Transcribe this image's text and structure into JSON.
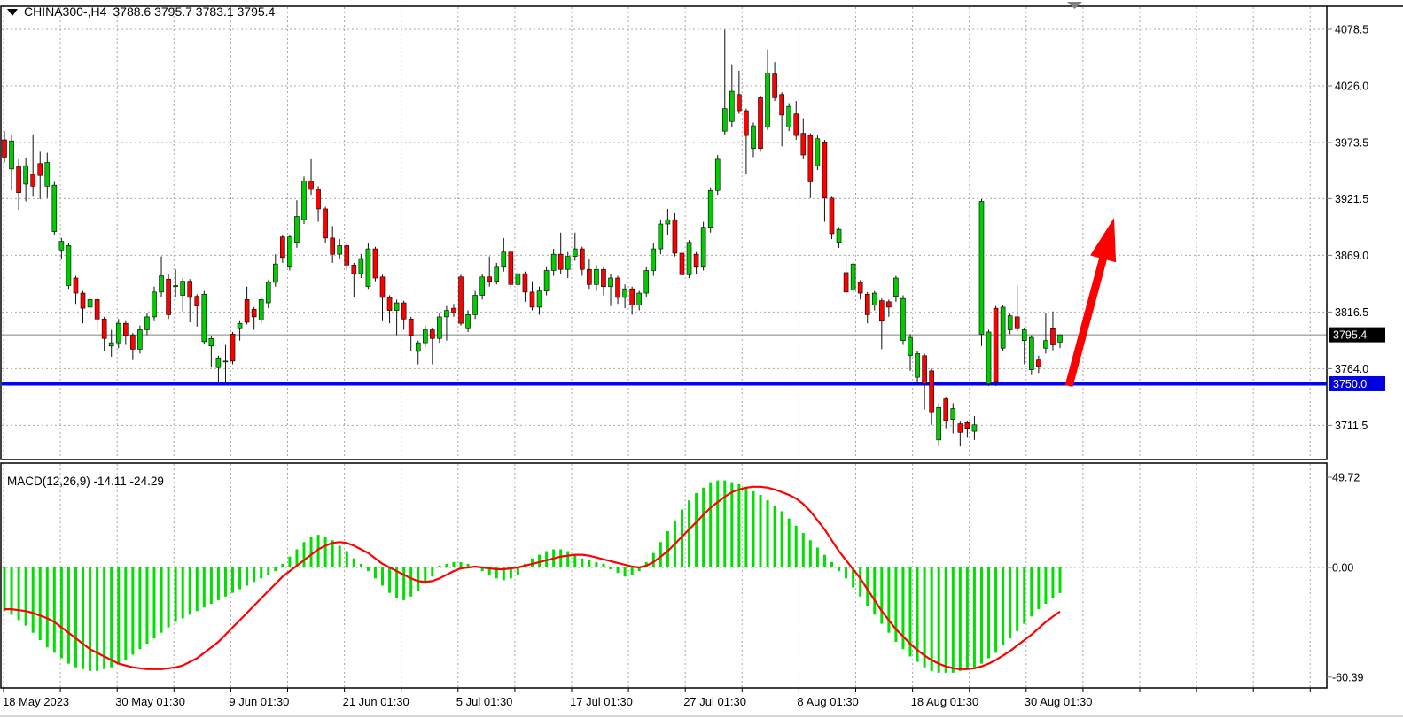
{
  "header": {
    "symbol": "CHINA300-,H4",
    "ohlc": "3788.6 3795.7 3783.1 3795.4"
  },
  "indicator": {
    "label": "MACD(12,26,9) -14.11 -24.29",
    "name": "MACD",
    "params": "12,26,9",
    "main_value": "-14.11",
    "signal_value": "-24.29"
  },
  "price_axis": {
    "current_price": "3795.4",
    "support_price": "3750.0"
  },
  "colors": {
    "up": "#00CC00",
    "down": "#FF0000",
    "wick": "#111111",
    "macd_histogram": "#00E000",
    "macd_signal": "#FF0000",
    "support_line": "#0000FF",
    "current_price_line": "#808080",
    "grid": "#A9A9A9",
    "badge_current_bg": "#000000",
    "badge_current_text": "#FFFFFF",
    "badge_support_bg": "#0000E0",
    "badge_support_text": "#FFFFFF",
    "text": "#000000",
    "background": "#FFFFFF",
    "border": "#000000",
    "arrow": "#FF0000",
    "shift_marker": "#808080"
  },
  "chart_data": {
    "type": "candlestick",
    "symbol": "CHINA300-",
    "timeframe": "H4",
    "last_bar": {
      "open": 3788.6,
      "high": 3795.7,
      "low": 3783.1,
      "close": 3795.4
    },
    "y_axis": {
      "ticks": [
        4078.5,
        4026.0,
        3973.5,
        3921.5,
        3869.0,
        3816.5,
        3764.0,
        3711.5
      ],
      "current": 3795.4,
      "support_level": 3750.0,
      "range": [
        3690,
        4085
      ]
    },
    "x_axis": {
      "labels": [
        "18 May 2023",
        "30 May 01:30",
        "9 Jun 01:30",
        "21 Jun 01:30",
        "5 Jul 01:30",
        "17 Jul 01:30",
        "27 Jul 01:30",
        "8 Aug 01:30",
        "18 Aug 01:30",
        "30 Aug 01:30"
      ],
      "grid": true
    },
    "candles": [
      [
        3976,
        3984,
        3955,
        3960
      ],
      [
        3949,
        3980,
        3929,
        3975
      ],
      [
        3951,
        3958,
        3911,
        3927
      ],
      [
        3935,
        3959,
        3919,
        3952
      ],
      [
        3944,
        3981,
        3924,
        3933
      ],
      [
        3954,
        3965,
        3921,
        3943
      ],
      [
        3933,
        3964,
        3922,
        3955
      ],
      [
        3891,
        3937,
        3888,
        3934
      ],
      [
        3874,
        3885,
        3866,
        3882
      ],
      [
        3841,
        3880,
        3838,
        3878
      ],
      [
        3848,
        3850,
        3824,
        3834
      ],
      [
        3834,
        3836,
        3806,
        3820
      ],
      [
        3821,
        3831,
        3812,
        3828
      ],
      [
        3828,
        3830,
        3798,
        3810
      ],
      [
        3810,
        3812,
        3780,
        3792
      ],
      [
        3785,
        3800,
        3775,
        3788
      ],
      [
        3788,
        3810,
        3783,
        3806
      ],
      [
        3806,
        3808,
        3786,
        3795
      ],
      [
        3795,
        3797,
        3772,
        3782
      ],
      [
        3782,
        3804,
        3778,
        3800
      ],
      [
        3800,
        3816,
        3795,
        3812
      ],
      [
        3812,
        3840,
        3808,
        3835
      ],
      [
        3835,
        3868,
        3830,
        3850
      ],
      [
        3847,
        3852,
        3810,
        3814
      ],
      [
        3840,
        3856,
        3830,
        3841
      ],
      [
        3832,
        3848,
        3817,
        3845
      ],
      [
        3845,
        3847,
        3807,
        3830
      ],
      [
        3831,
        3833,
        3803,
        3822
      ],
      [
        3789,
        3836,
        3787,
        3833
      ],
      [
        3785,
        3794,
        3765,
        3792
      ],
      [
        3765,
        3776,
        3751,
        3774
      ],
      [
        3771,
        3786,
        3750,
        3771
      ],
      [
        3796,
        3798,
        3768,
        3771
      ],
      [
        3801,
        3808,
        3790,
        3806
      ],
      [
        3828,
        3840,
        3805,
        3807
      ],
      [
        3819,
        3821,
        3800,
        3812
      ],
      [
        3809,
        3830,
        3806,
        3828
      ],
      [
        3825,
        3846,
        3820,
        3844
      ],
      [
        3844,
        3870,
        3840,
        3861
      ],
      [
        3886,
        3888,
        3862,
        3867
      ],
      [
        3858,
        3888,
        3855,
        3886
      ],
      [
        3881,
        3920,
        3876,
        3905
      ],
      [
        3902,
        3942,
        3898,
        3938
      ],
      [
        3938,
        3958,
        3925,
        3930
      ],
      [
        3930,
        3933,
        3900,
        3912
      ],
      [
        3912,
        3914,
        3880,
        3885
      ],
      [
        3885,
        3896,
        3862,
        3870
      ],
      [
        3870,
        3884,
        3866,
        3878
      ],
      [
        3878,
        3880,
        3855,
        3860
      ],
      [
        3860,
        3862,
        3830,
        3852
      ],
      [
        3852,
        3870,
        3848,
        3866
      ],
      [
        3840,
        3880,
        3838,
        3875
      ],
      [
        3875,
        3877,
        3845,
        3848
      ],
      [
        3849,
        3851,
        3808,
        3830
      ],
      [
        3830,
        3832,
        3806,
        3818
      ],
      [
        3818,
        3828,
        3795,
        3825
      ],
      [
        3825,
        3827,
        3800,
        3810
      ],
      [
        3810,
        3812,
        3780,
        3795
      ],
      [
        3780,
        3790,
        3768,
        3788
      ],
      [
        3788,
        3804,
        3784,
        3800
      ],
      [
        3800,
        3802,
        3768,
        3792
      ],
      [
        3792,
        3815,
        3788,
        3812
      ],
      [
        3812,
        3822,
        3790,
        3818
      ],
      [
        3820,
        3824,
        3812,
        3816
      ],
      [
        3849,
        3851,
        3804,
        3806
      ],
      [
        3801,
        3818,
        3798,
        3814
      ],
      [
        3814,
        3836,
        3810,
        3832
      ],
      [
        3832,
        3852,
        3828,
        3849
      ],
      [
        3849,
        3868,
        3840,
        3845
      ],
      [
        3845,
        3862,
        3842,
        3858
      ],
      [
        3858,
        3885,
        3854,
        3872
      ],
      [
        3872,
        3874,
        3838,
        3842
      ],
      [
        3842,
        3856,
        3820,
        3852
      ],
      [
        3852,
        3854,
        3826,
        3835
      ],
      [
        3835,
        3845,
        3818,
        3821
      ],
      [
        3821,
        3840,
        3814,
        3836
      ],
      [
        3836,
        3858,
        3832,
        3855
      ],
      [
        3855,
        3875,
        3850,
        3870
      ],
      [
        3870,
        3890,
        3852,
        3856
      ],
      [
        3856,
        3872,
        3848,
        3868
      ],
      [
        3868,
        3890,
        3864,
        3875
      ],
      [
        3875,
        3877,
        3850,
        3856
      ],
      [
        3856,
        3866,
        3838,
        3842
      ],
      [
        3842,
        3860,
        3836,
        3856
      ],
      [
        3856,
        3858,
        3832,
        3840
      ],
      [
        3840,
        3852,
        3822,
        3848
      ],
      [
        3848,
        3850,
        3824,
        3830
      ],
      [
        3830,
        3842,
        3820,
        3838
      ],
      [
        3838,
        3840,
        3814,
        3823
      ],
      [
        3823,
        3836,
        3818,
        3834
      ],
      [
        3834,
        3858,
        3830,
        3855
      ],
      [
        3855,
        3880,
        3850,
        3875
      ],
      [
        3875,
        3902,
        3870,
        3898
      ],
      [
        3898,
        3912,
        3888,
        3902
      ],
      [
        3902,
        3908,
        3868,
        3871
      ],
      [
        3871,
        3874,
        3846,
        3851
      ],
      [
        3851,
        3883,
        3848,
        3881
      ],
      [
        3870,
        3872,
        3852,
        3858
      ],
      [
        3858,
        3900,
        3855,
        3895
      ],
      [
        3895,
        3932,
        3890,
        3929
      ],
      [
        3929,
        3962,
        3925,
        3958
      ],
      [
        3984,
        4078,
        3980,
        4005
      ],
      [
        3993,
        4046,
        3988,
        4021
      ],
      [
        4018,
        4040,
        4000,
        4003
      ],
      [
        4003,
        4005,
        3944,
        3980
      ],
      [
        3968,
        3992,
        3960,
        3989
      ],
      [
        4015,
        4017,
        3965,
        3968
      ],
      [
        3988,
        4060,
        3985,
        4038
      ],
      [
        4037,
        4048,
        4012,
        4015
      ],
      [
        4018,
        4020,
        3970,
        3999
      ],
      [
        3988,
        4010,
        3984,
        4007
      ],
      [
        4000,
        4012,
        3976,
        3980
      ],
      [
        3982,
        3996,
        3958,
        3962
      ],
      [
        3980,
        3982,
        3922,
        3937
      ],
      [
        3952,
        3980,
        3948,
        3977
      ],
      [
        3974,
        3976,
        3900,
        3922
      ],
      [
        3922,
        3924,
        3884,
        3889
      ],
      [
        3881,
        3895,
        3876,
        3893
      ],
      [
        3853,
        3868,
        3832,
        3835
      ],
      [
        3837,
        3863,
        3834,
        3861
      ],
      [
        3844,
        3846,
        3828,
        3834
      ],
      [
        3833,
        3835,
        3806,
        3814
      ],
      [
        3823,
        3836,
        3818,
        3834
      ],
      [
        3827,
        3829,
        3782,
        3808
      ],
      [
        3826,
        3828,
        3812,
        3821
      ],
      [
        3831,
        3850,
        3826,
        3848
      ],
      [
        3790,
        3832,
        3786,
        3829
      ],
      [
        3776,
        3796,
        3762,
        3793
      ],
      [
        3756,
        3780,
        3750,
        3778
      ],
      [
        3776,
        3778,
        3726,
        3750
      ],
      [
        3762,
        3764,
        3712,
        3724
      ],
      [
        3698,
        3732,
        3692,
        3728
      ],
      [
        3736,
        3738,
        3708,
        3716
      ],
      [
        3717,
        3732,
        3704,
        3727
      ],
      [
        3713,
        3715,
        3692,
        3705
      ],
      [
        3714,
        3716,
        3700,
        3708
      ],
      [
        3706,
        3720,
        3698,
        3712
      ],
      [
        3796,
        3921,
        3785,
        3919
      ],
      [
        3750,
        3800,
        3748,
        3798
      ],
      [
        3820,
        3822,
        3748,
        3752
      ],
      [
        3783,
        3823,
        3780,
        3821
      ],
      [
        3800,
        3815,
        3796,
        3813
      ],
      [
        3812,
        3841,
        3798,
        3801
      ],
      [
        3790,
        3802,
        3768,
        3800
      ],
      [
        3763,
        3795,
        3758,
        3793
      ],
      [
        3772,
        3776,
        3760,
        3766
      ],
      [
        3783,
        3816,
        3778,
        3790
      ],
      [
        3801,
        3817,
        3781,
        3786
      ],
      [
        3788.6,
        3795.7,
        3783.1,
        3795.4
      ]
    ],
    "macd": {
      "params": [
        12,
        26,
        9
      ],
      "y_ticks": [
        49.72,
        0.0,
        -60.39
      ],
      "last_main": -14.11,
      "last_signal": -24.29,
      "histogram": [
        -24,
        -26,
        -29,
        -32,
        -36,
        -40,
        -44,
        -47,
        -50,
        -53,
        -55,
        -56,
        -57,
        -57,
        -56,
        -55,
        -53,
        -51,
        -48,
        -45,
        -42,
        -39,
        -36,
        -33,
        -30,
        -28,
        -26,
        -24,
        -22,
        -20,
        -18,
        -16,
        -14,
        -12,
        -10,
        -8,
        -6,
        -4,
        -2,
        2,
        6,
        10,
        14,
        17,
        18,
        17,
        15,
        12,
        9,
        5,
        2,
        -2,
        -6,
        -10,
        -14,
        -17,
        -18,
        -16,
        -13,
        -9,
        -5,
        1,
        2,
        3,
        3,
        2,
        1,
        -2,
        -4,
        -6,
        -7,
        -6,
        -4,
        2,
        5,
        7,
        9,
        10,
        10,
        9,
        7,
        5,
        4,
        3,
        2,
        -1,
        -3,
        -5,
        -4,
        -2,
        3,
        8,
        14,
        20,
        26,
        32,
        37,
        41,
        44,
        47,
        48,
        48,
        47,
        46,
        44,
        42,
        40,
        37,
        34,
        31,
        27,
        23,
        19,
        15,
        11,
        7,
        3,
        -2,
        -6,
        -11,
        -16,
        -21,
        -26,
        -31,
        -36,
        -41,
        -45,
        -49,
        -52,
        -55,
        -57,
        -58,
        -58,
        -58,
        -57,
        -56,
        -55,
        -53,
        -50,
        -47,
        -43,
        -39,
        -35,
        -31,
        -27,
        -23,
        -20,
        -17,
        -14.1
      ],
      "signal": [
        -23,
        -23,
        -23.5,
        -24,
        -25,
        -26.5,
        -28,
        -30,
        -33,
        -36,
        -39,
        -42,
        -45,
        -47,
        -49,
        -51,
        -53,
        -54,
        -55,
        -55.5,
        -56,
        -56,
        -56,
        -55.5,
        -55,
        -54,
        -52,
        -50,
        -47,
        -44,
        -41,
        -37,
        -33,
        -29,
        -25,
        -21,
        -17,
        -13,
        -9,
        -5,
        -2,
        1,
        4,
        7,
        10,
        12,
        13.5,
        14,
        13.5,
        12,
        10,
        8,
        5,
        2,
        0,
        -2,
        -4,
        -6,
        -7.5,
        -8,
        -7.5,
        -6,
        -4,
        -2,
        -0.5,
        0,
        0.5,
        0,
        -0.5,
        -1,
        -1,
        -0.5,
        0,
        1,
        2,
        3,
        4,
        5,
        6,
        6.5,
        7,
        7,
        6.5,
        5.5,
        4.5,
        3.5,
        2.5,
        1.5,
        0.5,
        0,
        1,
        3,
        6,
        9,
        13,
        17,
        21,
        25,
        29,
        33,
        36,
        39,
        41.5,
        43,
        44,
        44.5,
        44.5,
        44,
        43,
        41.5,
        40,
        38,
        35,
        31,
        26,
        21,
        15,
        9,
        4,
        -1,
        -6,
        -12,
        -18,
        -24,
        -29,
        -34,
        -38,
        -42,
        -45.5,
        -48.5,
        -51,
        -53,
        -54.5,
        -55.5,
        -56,
        -56,
        -55.5,
        -54.5,
        -53,
        -51,
        -48.5,
        -46,
        -43,
        -40,
        -37,
        -33.5,
        -30,
        -27,
        -24.3
      ]
    },
    "annotations": [
      {
        "type": "horizontal-support-line",
        "price": 3750.0,
        "color": "#0000FF"
      },
      {
        "type": "trend-arrow-up",
        "color": "#FF0000",
        "note": "bullish projection from support"
      },
      {
        "type": "chart-shift-marker",
        "color": "#808080"
      }
    ]
  }
}
